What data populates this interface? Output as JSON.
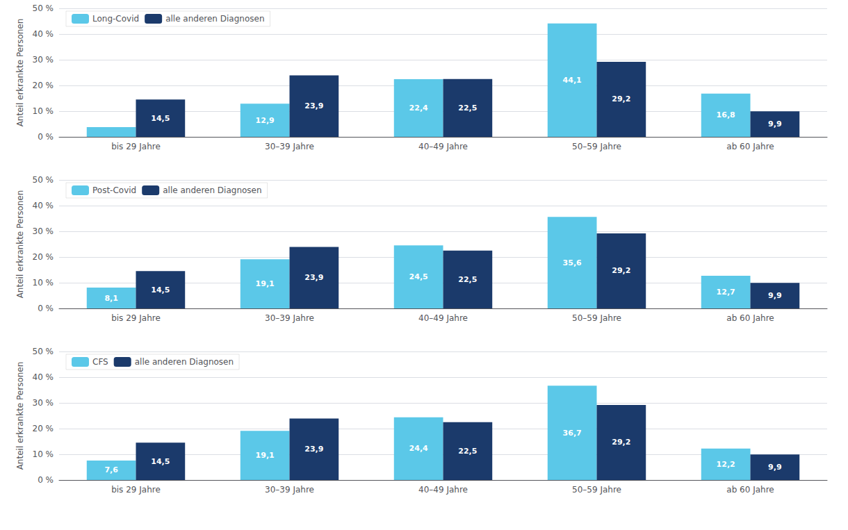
{
  "chart_data": [
    {
      "type": "bar",
      "categories": [
        "bis 29 Jahre",
        "30–39 Jahre",
        "40–49 Jahre",
        "50–59 Jahre",
        "ab 60 Jahre"
      ],
      "series": [
        {
          "name": "Long-Covid",
          "color": "#5BC8E8",
          "values": [
            3.8,
            12.9,
            22.4,
            44.1,
            16.8
          ],
          "value_labels": [
            null,
            "12,9",
            "22,4",
            "44,1",
            "16,8"
          ]
        },
        {
          "name": "alle anderen Diagnosen",
          "color": "#1B3A6B",
          "values": [
            14.5,
            23.9,
            22.5,
            29.2,
            9.9
          ],
          "value_labels": [
            "14,5",
            "23,9",
            "22,5",
            "29,2",
            "9,9"
          ]
        }
      ],
      "ylabel": "Anteil erkrankte Personen",
      "ylim": [
        0,
        50
      ],
      "yticks": [
        {
          "value": 0,
          "label": "0 %"
        },
        {
          "value": 10,
          "label": "10 %"
        },
        {
          "value": 20,
          "label": "20 %"
        },
        {
          "value": 30,
          "label": "30 %"
        },
        {
          "value": 40,
          "label": "40 %"
        },
        {
          "value": 50,
          "label": "50 %"
        }
      ],
      "grid": true,
      "legend": "upper left",
      "data_labels": true
    },
    {
      "type": "bar",
      "categories": [
        "bis 29 Jahre",
        "30–39 Jahre",
        "40–49 Jahre",
        "50–59 Jahre",
        "ab 60 Jahre"
      ],
      "series": [
        {
          "name": "Post-Covid",
          "color": "#5BC8E8",
          "values": [
            8.1,
            19.1,
            24.5,
            35.6,
            12.7
          ],
          "value_labels": [
            "8,1",
            "19,1",
            "24,5",
            "35,6",
            "12,7"
          ]
        },
        {
          "name": "alle anderen Diagnosen",
          "color": "#1B3A6B",
          "values": [
            14.5,
            23.9,
            22.5,
            29.2,
            9.9
          ],
          "value_labels": [
            "14,5",
            "23,9",
            "22,5",
            "29,2",
            "9,9"
          ]
        }
      ],
      "ylabel": "Anteil erkrankte Personen",
      "ylim": [
        0,
        50
      ],
      "yticks": [
        {
          "value": 0,
          "label": "0 %"
        },
        {
          "value": 10,
          "label": "10 %"
        },
        {
          "value": 20,
          "label": "20 %"
        },
        {
          "value": 30,
          "label": "30 %"
        },
        {
          "value": 40,
          "label": "40 %"
        },
        {
          "value": 50,
          "label": "50 %"
        }
      ],
      "grid": true,
      "legend": "upper left",
      "data_labels": true
    },
    {
      "type": "bar",
      "categories": [
        "bis 29 Jahre",
        "30–39 Jahre",
        "40–49 Jahre",
        "50–59 Jahre",
        "ab 60 Jahre"
      ],
      "series": [
        {
          "name": "CFS",
          "color": "#5BC8E8",
          "values": [
            7.6,
            19.1,
            24.4,
            36.7,
            12.2
          ],
          "value_labels": [
            "7,6",
            "19,1",
            "24,4",
            "36,7",
            "12,2"
          ]
        },
        {
          "name": "alle anderen Diagnosen",
          "color": "#1B3A6B",
          "values": [
            14.5,
            23.9,
            22.5,
            29.2,
            9.9
          ],
          "value_labels": [
            "14,5",
            "23,9",
            "22,5",
            "29,2",
            "9,9"
          ]
        }
      ],
      "ylabel": "Anteil erkrankte Personen",
      "ylim": [
        0,
        50
      ],
      "yticks": [
        {
          "value": 0,
          "label": "0 %"
        },
        {
          "value": 10,
          "label": "10 %"
        },
        {
          "value": 20,
          "label": "20 %"
        },
        {
          "value": 30,
          "label": "30 %"
        },
        {
          "value": 40,
          "label": "40 %"
        },
        {
          "value": 50,
          "label": "50 %"
        }
      ],
      "grid": true,
      "legend": "upper left",
      "data_labels": true
    }
  ]
}
